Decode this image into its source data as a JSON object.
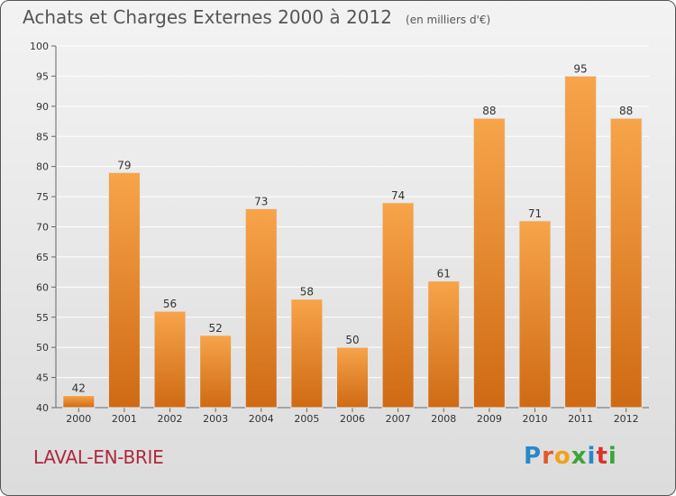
{
  "header": {
    "title": "Achats et Charges Externes 2000 à 2012",
    "subtitle": "(en milliers d'€)"
  },
  "footer": {
    "city": "LAVAL-EN-BRIE",
    "logo": "Proxiti"
  },
  "colors": {
    "bar_light": "#f7a44a",
    "bar_dark": "#cf6a14",
    "city": "#b0283c",
    "grid": "#ffffff"
  },
  "chart_data": {
    "type": "bar",
    "title": "Achats et Charges Externes 2000 à 2012",
    "subtitle": "(en milliers d'€)",
    "xlabel": "",
    "ylabel": "",
    "categories": [
      "2000",
      "2001",
      "2002",
      "2003",
      "2004",
      "2005",
      "2006",
      "2007",
      "2008",
      "2009",
      "2010",
      "2011",
      "2012"
    ],
    "values": [
      42,
      79,
      56,
      52,
      73,
      58,
      50,
      74,
      61,
      88,
      71,
      95,
      88
    ],
    "ylim": [
      40,
      100
    ],
    "yticks": [
      40,
      45,
      50,
      55,
      60,
      65,
      70,
      75,
      80,
      85,
      90,
      95,
      100
    ],
    "grid": true,
    "legend": "none"
  }
}
